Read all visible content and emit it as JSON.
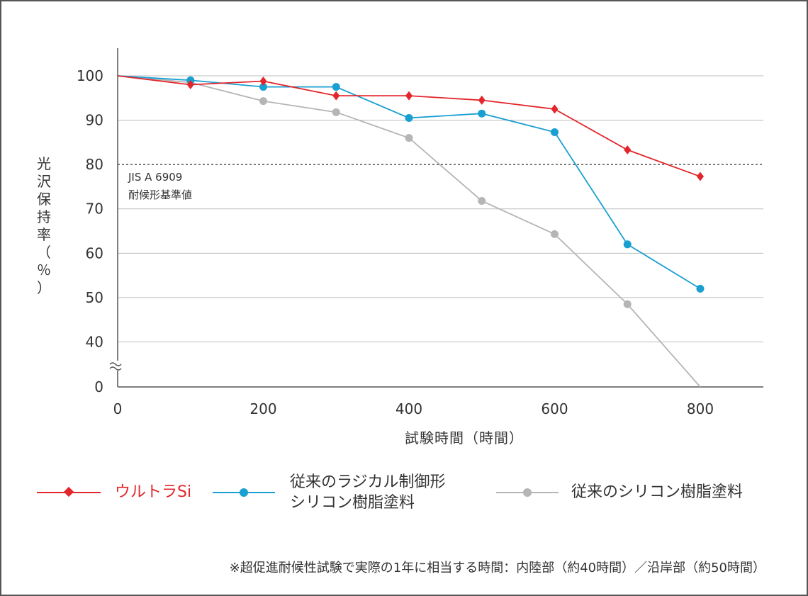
{
  "chart_data": {
    "type": "line",
    "ylabel": "光沢保持率（％）",
    "xlabel": "試験時間（時間）",
    "xlim": [
      0,
      880
    ],
    "x_ticks": [
      "0",
      "200",
      "400",
      "600",
      "800"
    ],
    "y_ticks": [
      "0",
      "40",
      "50",
      "60",
      "70",
      "80",
      "90",
      "100"
    ],
    "y_axis_break": true,
    "grid": "horizontal",
    "reference_line": {
      "y": 80,
      "label_line1": "JIS A 6909",
      "label_line2": "耐候形基準値"
    },
    "series": [
      {
        "name": "ウルトラSi",
        "color": "#e3262b",
        "marker": "diamond",
        "x": [
          0,
          100,
          200,
          300,
          400,
          500,
          600,
          700,
          800
        ],
        "values": [
          100,
          98,
          98.8,
          95.5,
          95.5,
          94.5,
          92.5,
          83.3,
          77.3
        ]
      },
      {
        "name": "従来のラジカル制御形\nシリコン樹脂塗料",
        "color": "#1a9fd1",
        "marker": "circle",
        "x": [
          0,
          100,
          200,
          300,
          400,
          500,
          600,
          700,
          800
        ],
        "values": [
          100,
          99,
          97.5,
          97.5,
          90.5,
          91.5,
          87.3,
          62,
          52
        ]
      },
      {
        "name": "従来のシリコン樹脂塗料",
        "color": "#b5b5b5",
        "marker": "circle",
        "x": [
          0,
          100,
          200,
          300,
          400,
          500,
          600,
          700,
          800
        ],
        "values": [
          100,
          98.5,
          94.3,
          91.8,
          86,
          71.8,
          64.3,
          48.5,
          0
        ]
      }
    ],
    "legend_position": "bottom"
  },
  "footnote": "※超促進耐候性試験で実際の1年に相当する時間：内陸部（約40時間）／沿岸部（約50時間）"
}
